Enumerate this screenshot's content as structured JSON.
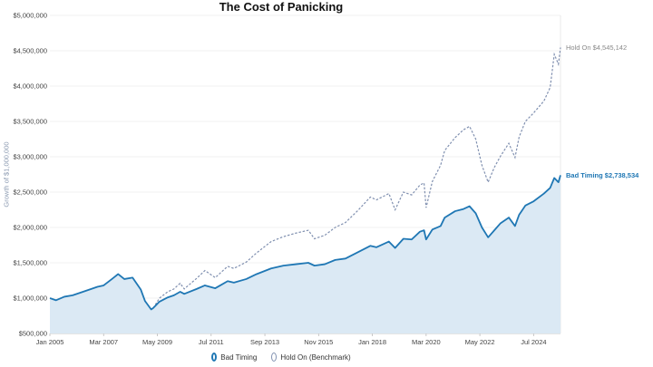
{
  "chart_data": {
    "type": "area",
    "title": "The Cost of Panicking",
    "ylabel": "Growth of $1,000,000",
    "xlabel": "",
    "y_ticks": [
      "$500,000",
      "$1,000,000",
      "$1,500,000",
      "$2,000,000",
      "$2,500,000",
      "$3,000,000",
      "$3,500,000",
      "$4,000,000",
      "$4,500,000",
      "$5,000,000"
    ],
    "x_ticks": [
      "Jan 2005",
      "Mar 2007",
      "May 2009",
      "Jul 2011",
      "Sep 2013",
      "Nov 2015",
      "Jan 2018",
      "Mar 2020",
      "May 2022",
      "Jul 2024"
    ],
    "ylim": [
      500000,
      5000000
    ],
    "xlim": [
      "2005-01",
      "2025-08"
    ],
    "grid": true,
    "legend_position": "bottom",
    "series": [
      {
        "name": "Bad Timing",
        "style": "solid-area",
        "color": "#1f77b4",
        "fill": "#dbe9f4",
        "end_label": "Bad Timing $2,738,534",
        "points": [
          [
            "2005-01",
            1000000
          ],
          [
            "2005-04",
            970000
          ],
          [
            "2005-08",
            1020000
          ],
          [
            "2005-12",
            1040000
          ],
          [
            "2006-05",
            1090000
          ],
          [
            "2006-09",
            1130000
          ],
          [
            "2006-12",
            1160000
          ],
          [
            "2007-03",
            1180000
          ],
          [
            "2007-07",
            1270000
          ],
          [
            "2007-10",
            1340000
          ],
          [
            "2008-01",
            1270000
          ],
          [
            "2008-05",
            1290000
          ],
          [
            "2008-09",
            1120000
          ],
          [
            "2008-11",
            960000
          ],
          [
            "2009-02",
            840000
          ],
          [
            "2009-03",
            860000
          ],
          [
            "2009-06",
            950000
          ],
          [
            "2009-10",
            1010000
          ],
          [
            "2010-01",
            1040000
          ],
          [
            "2010-04",
            1090000
          ],
          [
            "2010-06",
            1060000
          ],
          [
            "2010-12",
            1130000
          ],
          [
            "2011-04",
            1180000
          ],
          [
            "2011-09",
            1140000
          ],
          [
            "2011-12",
            1190000
          ],
          [
            "2012-03",
            1240000
          ],
          [
            "2012-06",
            1220000
          ],
          [
            "2012-12",
            1270000
          ],
          [
            "2013-05",
            1340000
          ],
          [
            "2013-12",
            1420000
          ],
          [
            "2014-06",
            1460000
          ],
          [
            "2014-12",
            1480000
          ],
          [
            "2015-06",
            1500000
          ],
          [
            "2015-09",
            1460000
          ],
          [
            "2016-02",
            1480000
          ],
          [
            "2016-07",
            1540000
          ],
          [
            "2016-12",
            1560000
          ],
          [
            "2017-06",
            1650000
          ],
          [
            "2017-12",
            1740000
          ],
          [
            "2018-03",
            1720000
          ],
          [
            "2018-09",
            1800000
          ],
          [
            "2018-12",
            1710000
          ],
          [
            "2019-04",
            1840000
          ],
          [
            "2019-08",
            1830000
          ],
          [
            "2019-12",
            1940000
          ],
          [
            "2020-02",
            1960000
          ],
          [
            "2020-03",
            1830000
          ],
          [
            "2020-06",
            1970000
          ],
          [
            "2020-10",
            2020000
          ],
          [
            "2020-12",
            2140000
          ],
          [
            "2021-05",
            2230000
          ],
          [
            "2021-09",
            2260000
          ],
          [
            "2021-12",
            2300000
          ],
          [
            "2022-03",
            2200000
          ],
          [
            "2022-06",
            2000000
          ],
          [
            "2022-09",
            1860000
          ],
          [
            "2022-12",
            1960000
          ],
          [
            "2023-03",
            2060000
          ],
          [
            "2023-07",
            2140000
          ],
          [
            "2023-10",
            2020000
          ],
          [
            "2023-12",
            2180000
          ],
          [
            "2024-03",
            2310000
          ],
          [
            "2024-07",
            2370000
          ],
          [
            "2024-12",
            2480000
          ],
          [
            "2025-03",
            2560000
          ],
          [
            "2025-05",
            2700000
          ],
          [
            "2025-07",
            2640000
          ],
          [
            "2025-08",
            2738534
          ]
        ]
      },
      {
        "name": "Hold On (Benchmark)",
        "style": "dashed",
        "color": "#8090b0",
        "end_label": "Hold On $4,545,142",
        "points": [
          [
            "2009-03",
            860000
          ],
          [
            "2009-06",
            1000000
          ],
          [
            "2009-10",
            1090000
          ],
          [
            "2010-01",
            1130000
          ],
          [
            "2010-04",
            1210000
          ],
          [
            "2010-06",
            1130000
          ],
          [
            "2010-12",
            1280000
          ],
          [
            "2011-04",
            1390000
          ],
          [
            "2011-09",
            1290000
          ],
          [
            "2011-12",
            1370000
          ],
          [
            "2012-03",
            1450000
          ],
          [
            "2012-06",
            1420000
          ],
          [
            "2012-12",
            1510000
          ],
          [
            "2013-05",
            1640000
          ],
          [
            "2013-12",
            1800000
          ],
          [
            "2014-06",
            1870000
          ],
          [
            "2014-12",
            1920000
          ],
          [
            "2015-06",
            1960000
          ],
          [
            "2015-09",
            1840000
          ],
          [
            "2016-02",
            1890000
          ],
          [
            "2016-07",
            2000000
          ],
          [
            "2016-12",
            2070000
          ],
          [
            "2017-06",
            2240000
          ],
          [
            "2017-12",
            2430000
          ],
          [
            "2018-03",
            2390000
          ],
          [
            "2018-09",
            2480000
          ],
          [
            "2018-12",
            2250000
          ],
          [
            "2019-04",
            2500000
          ],
          [
            "2019-08",
            2460000
          ],
          [
            "2019-12",
            2600000
          ],
          [
            "2020-02",
            2630000
          ],
          [
            "2020-03",
            2280000
          ],
          [
            "2020-06",
            2650000
          ],
          [
            "2020-10",
            2880000
          ],
          [
            "2020-12",
            3090000
          ],
          [
            "2021-05",
            3270000
          ],
          [
            "2021-09",
            3380000
          ],
          [
            "2021-12",
            3430000
          ],
          [
            "2022-03",
            3250000
          ],
          [
            "2022-06",
            2880000
          ],
          [
            "2022-09",
            2640000
          ],
          [
            "2022-12",
            2850000
          ],
          [
            "2023-03",
            3010000
          ],
          [
            "2023-07",
            3190000
          ],
          [
            "2023-10",
            2990000
          ],
          [
            "2023-12",
            3280000
          ],
          [
            "2024-03",
            3500000
          ],
          [
            "2024-07",
            3620000
          ],
          [
            "2024-12",
            3790000
          ],
          [
            "2025-03",
            3980000
          ],
          [
            "2025-05",
            4450000
          ],
          [
            "2025-07",
            4310000
          ],
          [
            "2025-08",
            4545142
          ]
        ]
      }
    ]
  }
}
